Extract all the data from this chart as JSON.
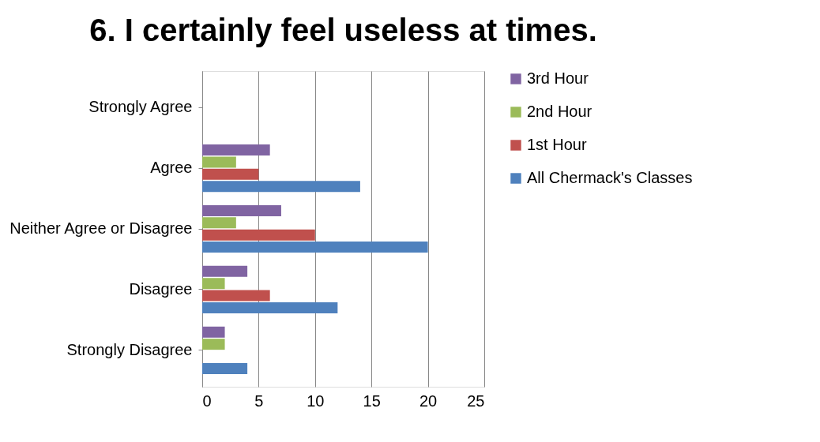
{
  "chart_data": {
    "type": "bar",
    "orientation": "horizontal",
    "title": "6. I certainly feel useless at times.",
    "categories": [
      "Strongly Agree",
      "Agree",
      "Neither Agree or Disagree",
      "Disagree",
      "Strongly Disagree"
    ],
    "series": [
      {
        "name": "3rd Hour",
        "color": "#8064a2",
        "values": [
          0,
          6,
          7,
          4,
          2
        ]
      },
      {
        "name": "2nd Hour",
        "color": "#9bbb59",
        "values": [
          0,
          3,
          3,
          2,
          2
        ]
      },
      {
        "name": "1st Hour",
        "color": "#c0504d",
        "values": [
          0,
          5,
          10,
          6,
          0
        ]
      },
      {
        "name": "All Chermack's Classes",
        "color": "#4f81bd",
        "values": [
          0,
          14,
          20,
          12,
          4
        ]
      }
    ],
    "xlim": [
      0,
      25
    ],
    "xticks": [
      0,
      5,
      10,
      15,
      20,
      25
    ],
    "grid": "x",
    "legend": "right"
  }
}
